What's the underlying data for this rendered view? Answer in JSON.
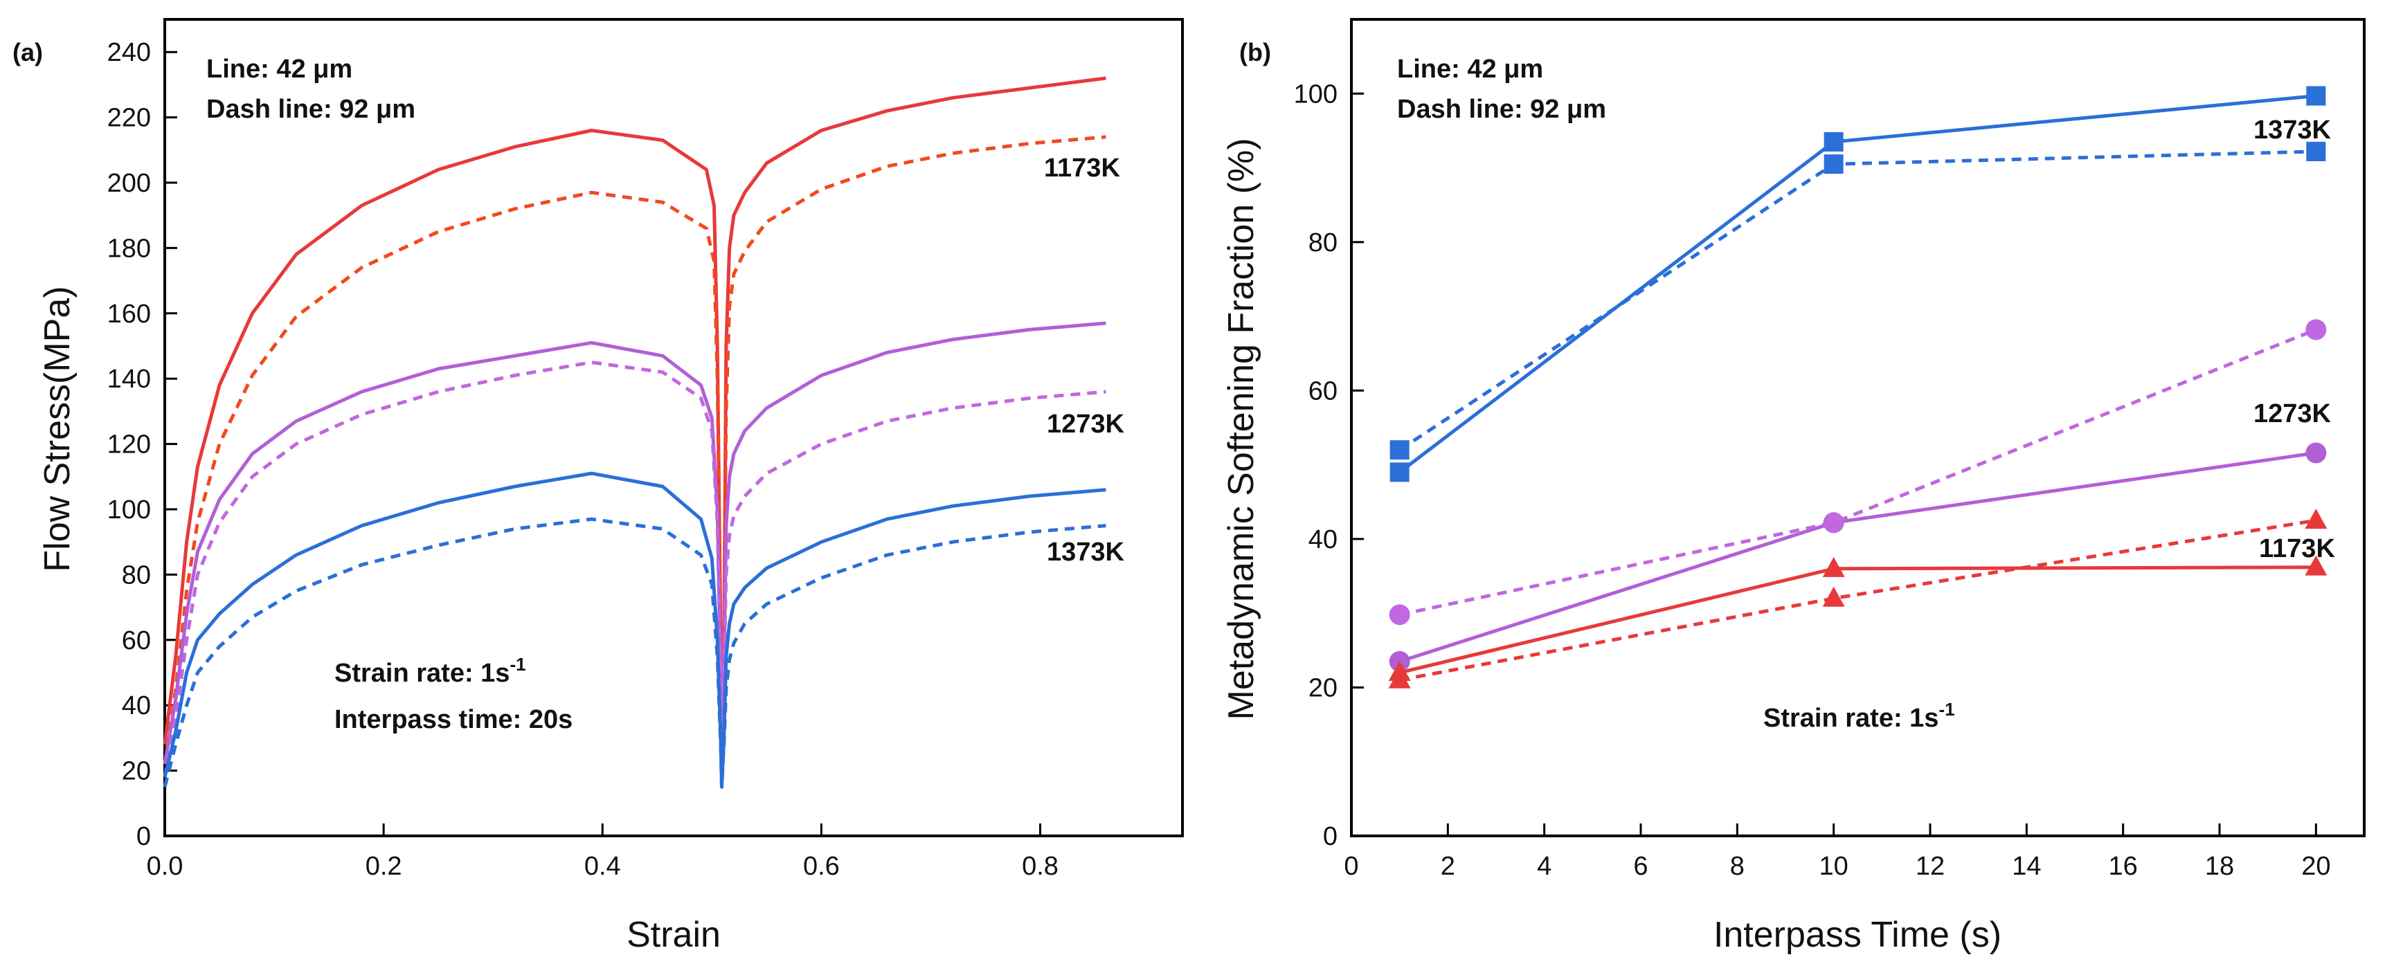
{
  "chart_data": [
    {
      "panel_label": "(a)",
      "type": "line",
      "xlabel": "Strain",
      "ylabel": "Flow Stress(MPa)",
      "xlim": [
        0,
        0.93
      ],
      "ylim": [
        0,
        250
      ],
      "xticks": [
        "0.0",
        "0.2",
        "0.4",
        "0.6",
        "0.8"
      ],
      "yticks": [
        "0",
        "20",
        "40",
        "60",
        "80",
        "100",
        "120",
        "140",
        "160",
        "180",
        "200",
        "220",
        "240"
      ],
      "grid": false,
      "notes": [
        "Line: 42 μm",
        "Dash line: 92 μm"
      ],
      "conditions": [
        "Strain rate: 1s",
        "Interpass time: 20s"
      ],
      "strain_rate_superscript": "-1",
      "series_labels": [
        "1173K",
        "1273K",
        "1373K"
      ],
      "series": [
        {
          "label": "1173K",
          "grain": "42 μm",
          "color": "#e8393a",
          "dash": false,
          "points": [
            [
              0,
              28
            ],
            [
              0.01,
              55
            ],
            [
              0.02,
              90
            ],
            [
              0.03,
              113
            ],
            [
              0.05,
              138
            ],
            [
              0.08,
              160
            ],
            [
              0.12,
              178
            ],
            [
              0.18,
              193
            ],
            [
              0.25,
              204
            ],
            [
              0.32,
              211
            ],
            [
              0.39,
              216
            ],
            [
              0.455,
              213
            ],
            [
              0.495,
              204
            ],
            [
              0.502,
              193
            ],
            [
              0.505,
              150
            ],
            [
              0.508,
              60
            ],
            [
              0.509,
              30
            ],
            [
              0.511,
              60
            ],
            [
              0.513,
              150
            ],
            [
              0.516,
              180
            ],
            [
              0.52,
              190
            ],
            [
              0.53,
              197
            ],
            [
              0.55,
              206
            ],
            [
              0.6,
              216
            ],
            [
              0.66,
              222
            ],
            [
              0.72,
              226
            ],
            [
              0.79,
              229
            ],
            [
              0.86,
              232
            ]
          ]
        },
        {
          "label": "1173K",
          "grain": "92 μm",
          "color": "#f04a1f",
          "dash": true,
          "points": [
            [
              0,
              22
            ],
            [
              0.01,
              45
            ],
            [
              0.02,
              75
            ],
            [
              0.03,
              96
            ],
            [
              0.05,
              120
            ],
            [
              0.08,
              141
            ],
            [
              0.12,
              159
            ],
            [
              0.18,
              174
            ],
            [
              0.25,
              185
            ],
            [
              0.32,
              192
            ],
            [
              0.39,
              197
            ],
            [
              0.455,
              194
            ],
            [
              0.495,
              186
            ],
            [
              0.502,
              176
            ],
            [
              0.505,
              140
            ],
            [
              0.508,
              60
            ],
            [
              0.509,
              30
            ],
            [
              0.511,
              60
            ],
            [
              0.513,
              130
            ],
            [
              0.516,
              162
            ],
            [
              0.52,
              172
            ],
            [
              0.53,
              179
            ],
            [
              0.55,
              188
            ],
            [
              0.6,
              198
            ],
            [
              0.66,
              205
            ],
            [
              0.72,
              209
            ],
            [
              0.79,
              212
            ],
            [
              0.86,
              214
            ]
          ]
        },
        {
          "label": "1273K",
          "grain": "42 μm",
          "color": "#b25fd6",
          "dash": false,
          "points": [
            [
              0,
              22
            ],
            [
              0.01,
              42
            ],
            [
              0.02,
              68
            ],
            [
              0.03,
              87
            ],
            [
              0.05,
              103
            ],
            [
              0.08,
              117
            ],
            [
              0.12,
              127
            ],
            [
              0.18,
              136
            ],
            [
              0.25,
              143
            ],
            [
              0.32,
              147
            ],
            [
              0.39,
              151
            ],
            [
              0.455,
              147
            ],
            [
              0.49,
              138
            ],
            [
              0.5,
              128
            ],
            [
              0.505,
              100
            ],
            [
              0.508,
              50
            ],
            [
              0.509,
              28
            ],
            [
              0.511,
              50
            ],
            [
              0.513,
              95
            ],
            [
              0.516,
              110
            ],
            [
              0.52,
              117
            ],
            [
              0.53,
              124
            ],
            [
              0.55,
              131
            ],
            [
              0.6,
              141
            ],
            [
              0.66,
              148
            ],
            [
              0.72,
              152
            ],
            [
              0.79,
              155
            ],
            [
              0.86,
              157
            ]
          ]
        },
        {
          "label": "1273K",
          "grain": "92 μm",
          "color": "#c068e0",
          "dash": true,
          "points": [
            [
              0,
              18
            ],
            [
              0.01,
              36
            ],
            [
              0.02,
              60
            ],
            [
              0.03,
              80
            ],
            [
              0.05,
              96
            ],
            [
              0.08,
              110
            ],
            [
              0.12,
              120
            ],
            [
              0.18,
              129
            ],
            [
              0.25,
              136
            ],
            [
              0.32,
              141
            ],
            [
              0.39,
              145
            ],
            [
              0.455,
              142
            ],
            [
              0.49,
              134
            ],
            [
              0.5,
              124
            ],
            [
              0.505,
              96
            ],
            [
              0.508,
              48
            ],
            [
              0.509,
              26
            ],
            [
              0.511,
              48
            ],
            [
              0.513,
              80
            ],
            [
              0.516,
              92
            ],
            [
              0.52,
              98
            ],
            [
              0.53,
              104
            ],
            [
              0.55,
              111
            ],
            [
              0.6,
              120
            ],
            [
              0.66,
              127
            ],
            [
              0.72,
              131
            ],
            [
              0.79,
              134
            ],
            [
              0.86,
              136
            ]
          ]
        },
        {
          "label": "1373K",
          "grain": "42 μm",
          "color": "#2b6fd8",
          "dash": false,
          "points": [
            [
              0,
              18
            ],
            [
              0.01,
              32
            ],
            [
              0.02,
              50
            ],
            [
              0.03,
              60
            ],
            [
              0.05,
              68
            ],
            [
              0.08,
              77
            ],
            [
              0.12,
              86
            ],
            [
              0.18,
              95
            ],
            [
              0.25,
              102
            ],
            [
              0.32,
              107
            ],
            [
              0.39,
              111
            ],
            [
              0.455,
              107
            ],
            [
              0.49,
              97
            ],
            [
              0.5,
              85
            ],
            [
              0.505,
              60
            ],
            [
              0.508,
              30
            ],
            [
              0.509,
              15
            ],
            [
              0.511,
              30
            ],
            [
              0.513,
              55
            ],
            [
              0.516,
              65
            ],
            [
              0.52,
              71
            ],
            [
              0.53,
              76
            ],
            [
              0.55,
              82
            ],
            [
              0.6,
              90
            ],
            [
              0.66,
              97
            ],
            [
              0.72,
              101
            ],
            [
              0.79,
              104
            ],
            [
              0.86,
              106
            ]
          ]
        },
        {
          "label": "1373K",
          "grain": "92 μm",
          "color": "#2b6fd8",
          "dash": true,
          "points": [
            [
              0,
              15
            ],
            [
              0.01,
              28
            ],
            [
              0.02,
              40
            ],
            [
              0.03,
              50
            ],
            [
              0.05,
              58
            ],
            [
              0.08,
              67
            ],
            [
              0.12,
              75
            ],
            [
              0.18,
              83
            ],
            [
              0.25,
              89
            ],
            [
              0.32,
              94
            ],
            [
              0.39,
              97
            ],
            [
              0.455,
              94
            ],
            [
              0.49,
              86
            ],
            [
              0.5,
              77
            ],
            [
              0.505,
              55
            ],
            [
              0.508,
              28
            ],
            [
              0.509,
              15
            ],
            [
              0.511,
              28
            ],
            [
              0.513,
              45
            ],
            [
              0.516,
              54
            ],
            [
              0.52,
              59
            ],
            [
              0.53,
              65
            ],
            [
              0.55,
              71
            ],
            [
              0.6,
              79
            ],
            [
              0.66,
              86
            ],
            [
              0.72,
              90
            ],
            [
              0.79,
              93
            ],
            [
              0.86,
              95
            ]
          ]
        }
      ]
    },
    {
      "panel_label": "(b)",
      "type": "line",
      "xlabel": "Interpass Time (s)",
      "ylabel": "Metadynamic Softening Fraction (%)",
      "xlim": [
        0,
        21
      ],
      "ylim": [
        0,
        110
      ],
      "xticks": [
        "0",
        "2",
        "4",
        "6",
        "8",
        "10",
        "12",
        "14",
        "16",
        "18",
        "20"
      ],
      "yticks": [
        "0",
        "20",
        "40",
        "60",
        "80",
        "100"
      ],
      "grid": false,
      "notes": [
        "Line: 42 μm",
        "Dash line: 92 μm"
      ],
      "conditions": [
        "Strain rate: 1s"
      ],
      "strain_rate_superscript": "-1",
      "series_labels": [
        "1373K",
        "1273K",
        "1173K"
      ],
      "series": [
        {
          "label": "1373K",
          "grain": "42 μm",
          "color": "#2b6fd8",
          "dash": false,
          "marker": "square",
          "x": [
            1,
            10,
            20
          ],
          "y": [
            49,
            93.5,
            99.7
          ]
        },
        {
          "label": "1373K",
          "grain": "92 μm",
          "color": "#2b6fd8",
          "dash": true,
          "marker": "square",
          "x": [
            1,
            10,
            20
          ],
          "y": [
            52,
            90.5,
            92.2
          ]
        },
        {
          "label": "1273K",
          "grain": "42 μm",
          "color": "#b25fd6",
          "dash": false,
          "marker": "circle",
          "x": [
            1,
            10,
            20
          ],
          "y": [
            23.5,
            42.2,
            51.6
          ]
        },
        {
          "label": "1273K",
          "grain": "92 μm",
          "color": "#c068e0",
          "dash": true,
          "marker": "circle",
          "x": [
            1,
            10,
            20
          ],
          "y": [
            29.8,
            42.2,
            68.2
          ]
        },
        {
          "label": "1173K",
          "grain": "42 μm",
          "color": "#e8393a",
          "dash": false,
          "marker": "triangle",
          "x": [
            1,
            10,
            20
          ],
          "y": [
            22,
            36,
            36.2
          ]
        },
        {
          "label": "1173K",
          "grain": "92 μm",
          "color": "#e8393a",
          "dash": true,
          "marker": "triangle",
          "x": [
            1,
            10,
            20
          ],
          "y": [
            21,
            32,
            42.5
          ]
        }
      ]
    }
  ]
}
